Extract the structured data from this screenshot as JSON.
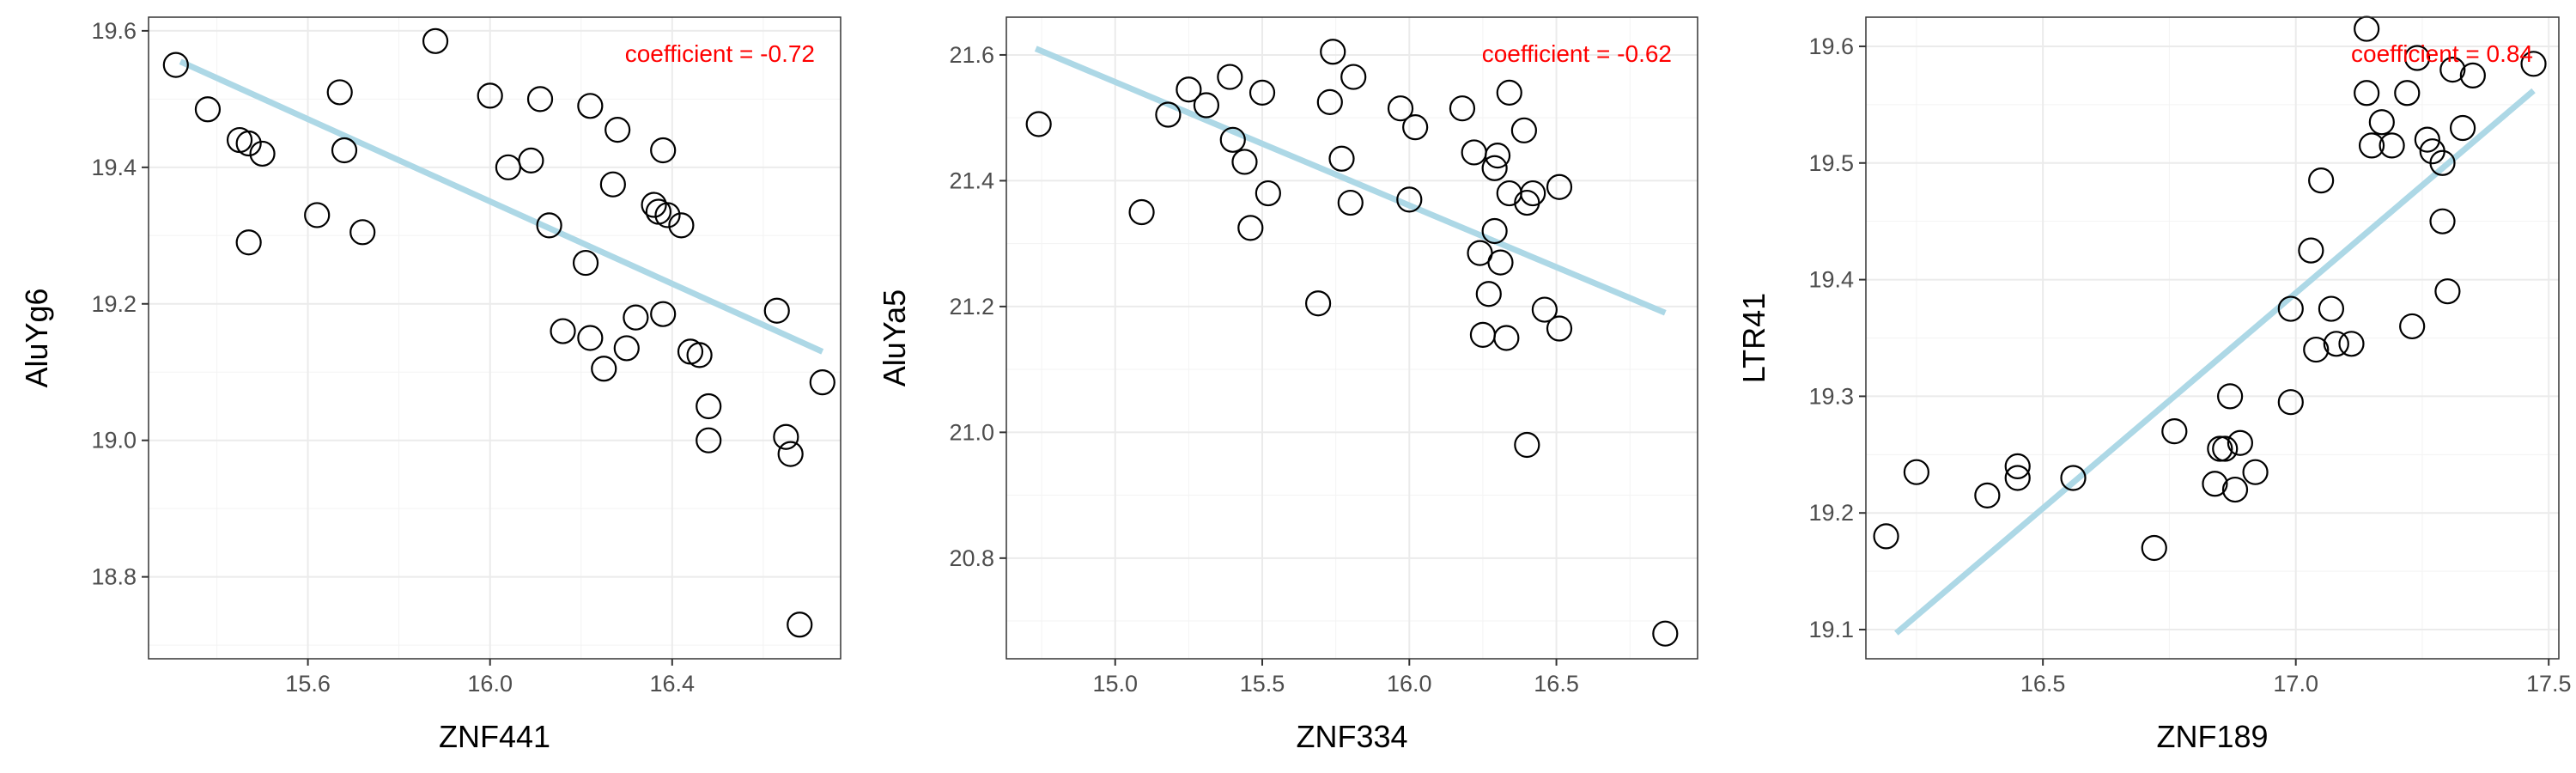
{
  "chart_data": [
    {
      "type": "scatter",
      "xlabel": "ZNF441",
      "ylabel": "AluYg6",
      "coefficient_text": "coefficient =  -0.72",
      "colors": {
        "points": "#000000",
        "fit_line": "#add8e6",
        "coefficient": "#ff0000"
      },
      "xlim": [
        15.25,
        16.77
      ],
      "ylim": [
        18.68,
        19.62
      ],
      "xticks": [
        15.6,
        16.0,
        16.4
      ],
      "xtick_labels": [
        "15.6",
        "16.0",
        "16.4"
      ],
      "yticks": [
        18.8,
        19.0,
        19.2,
        19.4,
        19.6
      ],
      "ytick_labels": [
        "18.8",
        "19.0",
        "19.2",
        "19.4",
        "19.6"
      ],
      "fit_line": {
        "x": [
          15.32,
          16.73
        ],
        "y": [
          19.555,
          19.13
        ]
      },
      "points": [
        [
          15.31,
          19.55
        ],
        [
          15.38,
          19.485
        ],
        [
          15.45,
          19.44
        ],
        [
          15.47,
          19.435
        ],
        [
          15.5,
          19.42
        ],
        [
          15.47,
          19.29
        ],
        [
          15.62,
          19.33
        ],
        [
          15.67,
          19.51
        ],
        [
          15.68,
          19.425
        ],
        [
          15.72,
          19.305
        ],
        [
          15.88,
          19.585
        ],
        [
          16.0,
          19.505
        ],
        [
          16.04,
          19.4
        ],
        [
          16.09,
          19.41
        ],
        [
          16.11,
          19.5
        ],
        [
          16.13,
          19.315
        ],
        [
          16.16,
          19.16
        ],
        [
          16.21,
          19.26
        ],
        [
          16.22,
          19.49
        ],
        [
          16.22,
          19.15
        ],
        [
          16.25,
          19.105
        ],
        [
          16.27,
          19.375
        ],
        [
          16.28,
          19.455
        ],
        [
          16.3,
          19.135
        ],
        [
          16.32,
          19.18
        ],
        [
          16.36,
          19.345
        ],
        [
          16.37,
          19.335
        ],
        [
          16.38,
          19.425
        ],
        [
          16.39,
          19.33
        ],
        [
          16.38,
          19.185
        ],
        [
          16.42,
          19.315
        ],
        [
          16.44,
          19.13
        ],
        [
          16.46,
          19.125
        ],
        [
          16.48,
          19.05
        ],
        [
          16.48,
          19.0
        ],
        [
          16.63,
          19.19
        ],
        [
          16.65,
          19.005
        ],
        [
          16.66,
          18.98
        ],
        [
          16.73,
          19.085
        ],
        [
          16.68,
          18.73
        ]
      ]
    },
    {
      "type": "scatter",
      "xlabel": "ZNF334",
      "ylabel": "AluYa5",
      "coefficient_text": "coefficient =  -0.62",
      "colors": {
        "points": "#000000",
        "fit_line": "#add8e6",
        "coefficient": "#ff0000"
      },
      "xlim": [
        14.63,
        16.98
      ],
      "ylim": [
        20.64,
        21.66
      ],
      "xticks": [
        15.0,
        15.5,
        16.0,
        16.5
      ],
      "xtick_labels": [
        "15.0",
        "15.5",
        "16.0",
        "16.5"
      ],
      "yticks": [
        20.8,
        21.0,
        21.2,
        21.4,
        21.6
      ],
      "ytick_labels": [
        "20.8",
        "21.0",
        "21.2",
        "21.4",
        "21.6"
      ],
      "fit_line": {
        "x": [
          14.73,
          16.87
        ],
        "y": [
          21.61,
          21.19
        ]
      },
      "points": [
        [
          14.74,
          21.49
        ],
        [
          15.09,
          21.35
        ],
        [
          15.18,
          21.505
        ],
        [
          15.25,
          21.545
        ],
        [
          15.31,
          21.52
        ],
        [
          15.39,
          21.565
        ],
        [
          15.4,
          21.465
        ],
        [
          15.44,
          21.43
        ],
        [
          15.46,
          21.325
        ],
        [
          15.5,
          21.54
        ],
        [
          15.52,
          21.38
        ],
        [
          15.69,
          21.205
        ],
        [
          15.73,
          21.525
        ],
        [
          15.74,
          21.605
        ],
        [
          15.77,
          21.435
        ],
        [
          15.8,
          21.365
        ],
        [
          15.81,
          21.565
        ],
        [
          15.97,
          21.515
        ],
        [
          16.0,
          21.37
        ],
        [
          16.02,
          21.485
        ],
        [
          16.18,
          21.515
        ],
        [
          16.22,
          21.445
        ],
        [
          16.24,
          21.285
        ],
        [
          16.25,
          21.155
        ],
        [
          16.27,
          21.22
        ],
        [
          16.29,
          21.42
        ],
        [
          16.3,
          21.44
        ],
        [
          16.29,
          21.32
        ],
        [
          16.31,
          21.27
        ],
        [
          16.33,
          21.15
        ],
        [
          16.34,
          21.54
        ],
        [
          16.34,
          21.38
        ],
        [
          16.39,
          21.48
        ],
        [
          16.4,
          21.365
        ],
        [
          16.42,
          21.38
        ],
        [
          16.4,
          20.98
        ],
        [
          16.46,
          21.195
        ],
        [
          16.51,
          21.39
        ],
        [
          16.51,
          21.165
        ],
        [
          16.87,
          20.68
        ]
      ]
    },
    {
      "type": "scatter",
      "xlabel": "ZNF189",
      "ylabel": "LTR41",
      "coefficient_text": "coefficient =  0.84",
      "colors": {
        "points": "#000000",
        "fit_line": "#add8e6",
        "coefficient": "#ff0000"
      },
      "xlim": [
        16.15,
        17.52
      ],
      "ylim": [
        19.075,
        19.625
      ],
      "xticks": [
        16.5,
        17.0,
        17.5
      ],
      "xtick_labels": [
        "16.5",
        "17.0",
        "17.5"
      ],
      "yticks": [
        19.1,
        19.2,
        19.3,
        19.4,
        19.5,
        19.6
      ],
      "ytick_labels": [
        "19.1",
        "19.2",
        "19.3",
        "19.4",
        "19.5",
        "19.6"
      ],
      "fit_line": {
        "x": [
          16.21,
          17.47
        ],
        "y": [
          19.097,
          19.562
        ]
      },
      "points": [
        [
          16.19,
          19.18
        ],
        [
          16.25,
          19.235
        ],
        [
          16.39,
          19.215
        ],
        [
          16.45,
          19.24
        ],
        [
          16.45,
          19.23
        ],
        [
          16.56,
          19.23
        ],
        [
          16.72,
          19.17
        ],
        [
          16.76,
          19.27
        ],
        [
          16.84,
          19.225
        ],
        [
          16.85,
          19.255
        ],
        [
          16.86,
          19.255
        ],
        [
          16.87,
          19.3
        ],
        [
          16.88,
          19.22
        ],
        [
          16.89,
          19.26
        ],
        [
          16.92,
          19.235
        ],
        [
          16.99,
          19.375
        ],
        [
          16.99,
          19.295
        ],
        [
          17.03,
          19.425
        ],
        [
          17.04,
          19.34
        ],
        [
          17.05,
          19.485
        ],
        [
          17.07,
          19.375
        ],
        [
          17.08,
          19.345
        ],
        [
          17.11,
          19.345
        ],
        [
          17.14,
          19.615
        ],
        [
          17.14,
          19.56
        ],
        [
          17.15,
          19.515
        ],
        [
          17.17,
          19.535
        ],
        [
          17.19,
          19.515
        ],
        [
          17.22,
          19.56
        ],
        [
          17.23,
          19.36
        ],
        [
          17.24,
          19.59
        ],
        [
          17.26,
          19.52
        ],
        [
          17.27,
          19.51
        ],
        [
          17.29,
          19.5
        ],
        [
          17.29,
          19.45
        ],
        [
          17.3,
          19.39
        ],
        [
          17.31,
          19.58
        ],
        [
          17.33,
          19.53
        ],
        [
          17.35,
          19.575
        ],
        [
          17.47,
          19.585
        ]
      ]
    }
  ]
}
